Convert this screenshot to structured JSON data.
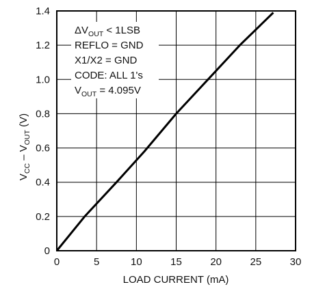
{
  "chart_data": {
    "type": "line",
    "xlabel": "LOAD CURRENT (mA)",
    "ylabel": {
      "base": "V",
      "sub1": "CC",
      "mid": " – V",
      "sub2": "OUT",
      "unit": " (V)"
    },
    "xlim": [
      0,
      30
    ],
    "ylim": [
      0,
      1.4
    ],
    "x_ticks": [
      "0",
      "5",
      "10",
      "15",
      "20",
      "25",
      "30"
    ],
    "y_ticks": [
      "0",
      "0.2",
      "0.4",
      "0.6",
      "0.8",
      "1.0",
      "1.2",
      "1.4"
    ],
    "grid": true,
    "series": [
      {
        "x": [
          0,
          3.5,
          7.5,
          11.0,
          15.0,
          19.0,
          23.0,
          27.2
        ],
        "y": [
          0,
          0.2,
          0.4,
          0.58,
          0.8,
          1.0,
          1.2,
          1.39
        ],
        "color": "#000000"
      }
    ],
    "annotations": {
      "line1": {
        "prefix": "ΔV",
        "sub": "OUT",
        "suffix": " < 1LSB"
      },
      "line2": "REFLO = GND",
      "line3": "X1/X2 = GND",
      "line4": "CODE: ALL 1's",
      "line5": {
        "prefix": "V",
        "sub": "OUT",
        "suffix": " = 4.095V"
      }
    }
  }
}
